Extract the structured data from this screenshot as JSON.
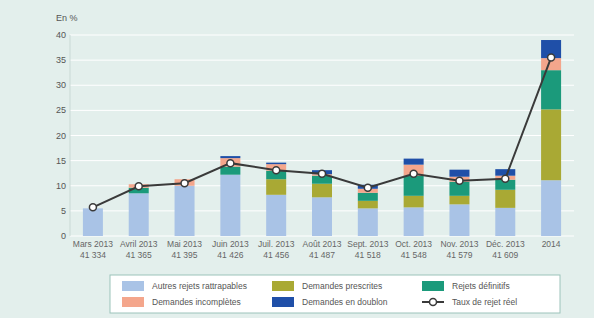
{
  "chart_data": {
    "type": "bar",
    "stacked": true,
    "grid": true,
    "legend": "bottom",
    "y_label": "En %",
    "categories": [
      "Mars 2013\n41 334",
      "Avril 2013\n41 365",
      "Mai 2013\n41 395",
      "Juin 2013\n41 426",
      "Juil. 2013\n41 456",
      "Août 2013\n41 487",
      "Sept. 2013\n41 518",
      "Oct. 2013\n41 548",
      "Nov. 2013\n41 579",
      "Déc. 2013\n41 609",
      "2014"
    ],
    "ylim": [
      0,
      40
    ],
    "yticks": [
      0,
      5,
      10,
      15,
      20,
      25,
      30,
      35,
      40
    ],
    "series": [
      {
        "name": "Autres rejets rattrapables",
        "type": "bar",
        "color": "#a9c3e6",
        "values": [
          5.5,
          8.5,
          10,
          12.2,
          8.2,
          7.7,
          5.5,
          5.7,
          6.3,
          5.6,
          11.1
        ]
      },
      {
        "name": "Demandes prescrites",
        "type": "bar",
        "color": "#a9a934",
        "values": [
          0,
          0,
          0,
          0,
          3.1,
          2.7,
          1.5,
          2.3,
          1.7,
          3.6,
          14.1
        ]
      },
      {
        "name": "Rejets définitifs",
        "type": "bar",
        "color": "#1b9a7b",
        "values": [
          0,
          1.1,
          0,
          1.6,
          1.7,
          1.6,
          1.6,
          4,
          2.8,
          2,
          7.8
        ]
      },
      {
        "name": "Demandes incomplètes",
        "type": "bar",
        "color": "#f4a68c",
        "values": [
          0,
          0.7,
          1.3,
          1.7,
          1.3,
          0.3,
          0.8,
          2.2,
          1,
          0.8,
          2.4
        ]
      },
      {
        "name": "Demandes en doublon",
        "type": "bar",
        "color": "#1f4fa8",
        "values": [
          0,
          0,
          0,
          0.4,
          0.3,
          0.8,
          0.8,
          1.2,
          1.4,
          1.3,
          3.6
        ]
      },
      {
        "name": "Taux de rejet réel",
        "type": "line",
        "color": "#3a3a3a",
        "marker": "circle",
        "line_style": "solid",
        "values": [
          5.7,
          9.9,
          10.5,
          14.5,
          13.1,
          12.4,
          9.6,
          12.4,
          11,
          11.4,
          35.5
        ]
      }
    ]
  }
}
